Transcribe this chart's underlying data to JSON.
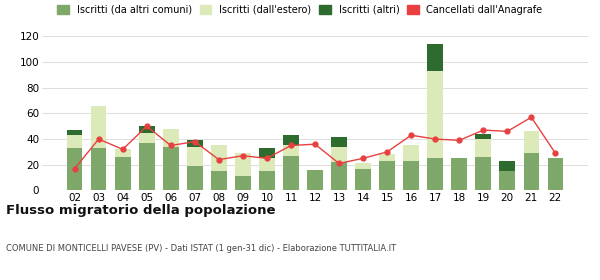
{
  "years": [
    "02",
    "03",
    "04",
    "05",
    "06",
    "07",
    "08",
    "09",
    "10",
    "11",
    "12",
    "13",
    "14",
    "15",
    "16",
    "17",
    "18",
    "19",
    "20",
    "21",
    "22"
  ],
  "iscritti_comuni": [
    33,
    33,
    26,
    37,
    34,
    19,
    15,
    11,
    15,
    27,
    16,
    22,
    17,
    23,
    23,
    25,
    25,
    26,
    15,
    29,
    25
  ],
  "iscritti_estero": [
    10,
    33,
    6,
    8,
    14,
    15,
    20,
    18,
    10,
    8,
    0,
    12,
    4,
    5,
    12,
    68,
    0,
    14,
    0,
    17,
    0
  ],
  "iscritti_altri": [
    4,
    0,
    0,
    5,
    0,
    5,
    0,
    0,
    8,
    8,
    0,
    8,
    0,
    0,
    0,
    21,
    0,
    4,
    8,
    0,
    0
  ],
  "cancellati": [
    17,
    40,
    32,
    50,
    35,
    38,
    24,
    27,
    25,
    35,
    36,
    21,
    25,
    30,
    43,
    40,
    39,
    47,
    46,
    57,
    29
  ],
  "color_comuni": "#7da86a",
  "color_estero": "#dce9b8",
  "color_altri": "#2e6b2e",
  "color_cancellati": "#e84040",
  "ylim": [
    0,
    120
  ],
  "yticks": [
    0,
    20,
    40,
    60,
    80,
    100,
    120
  ],
  "title": "Flusso migratorio della popolazione",
  "subtitle": "COMUNE DI MONTICELLI PAVESE (PV) - Dati ISTAT (1 gen-31 dic) - Elaborazione TUTTITALIA.IT",
  "legend_labels": [
    "Iscritti (da altri comuni)",
    "Iscritti (dall'estero)",
    "Iscritti (altri)",
    "Cancellati dall'Anagrafe"
  ],
  "bg_color": "#ffffff",
  "grid_color": "#dddddd"
}
